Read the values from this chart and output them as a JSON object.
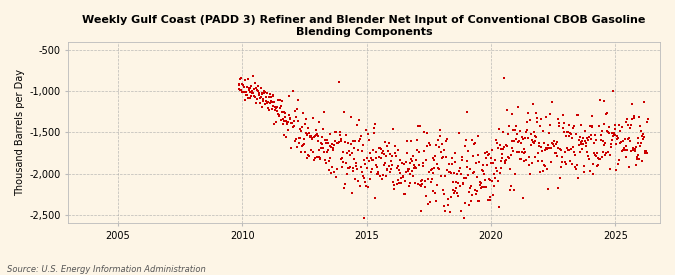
{
  "title": "Weekly Gulf Coast (PADD 3) Refiner and Blender Net Input of Conventional CBOB Gasoline\nBlending Components",
  "ylabel": "Thousand Barrels per Day",
  "source": "Source: U.S. Energy Information Administration",
  "background_color": "#fdf5e6",
  "plot_bg_color": "#fdf5e6",
  "marker_color": "#cc0000",
  "marker": "s",
  "marker_size": 3.5,
  "xlim": [
    2003.0,
    2026.8
  ],
  "ylim": [
    -2600,
    -400
  ],
  "yticks": [
    -2500,
    -2000,
    -1500,
    -1000,
    -500
  ],
  "ytick_labels": [
    "-2,500",
    "-2,000",
    "-1,500",
    "-1,000",
    "-500"
  ],
  "xticks": [
    2005,
    2010,
    2015,
    2020,
    2025
  ],
  "grid_color": "#aaaaaa",
  "grid_style": "--",
  "grid_alpha": 0.8,
  "seed": 42,
  "data_start_year": 2009.85,
  "data_end_year": 2026.3
}
